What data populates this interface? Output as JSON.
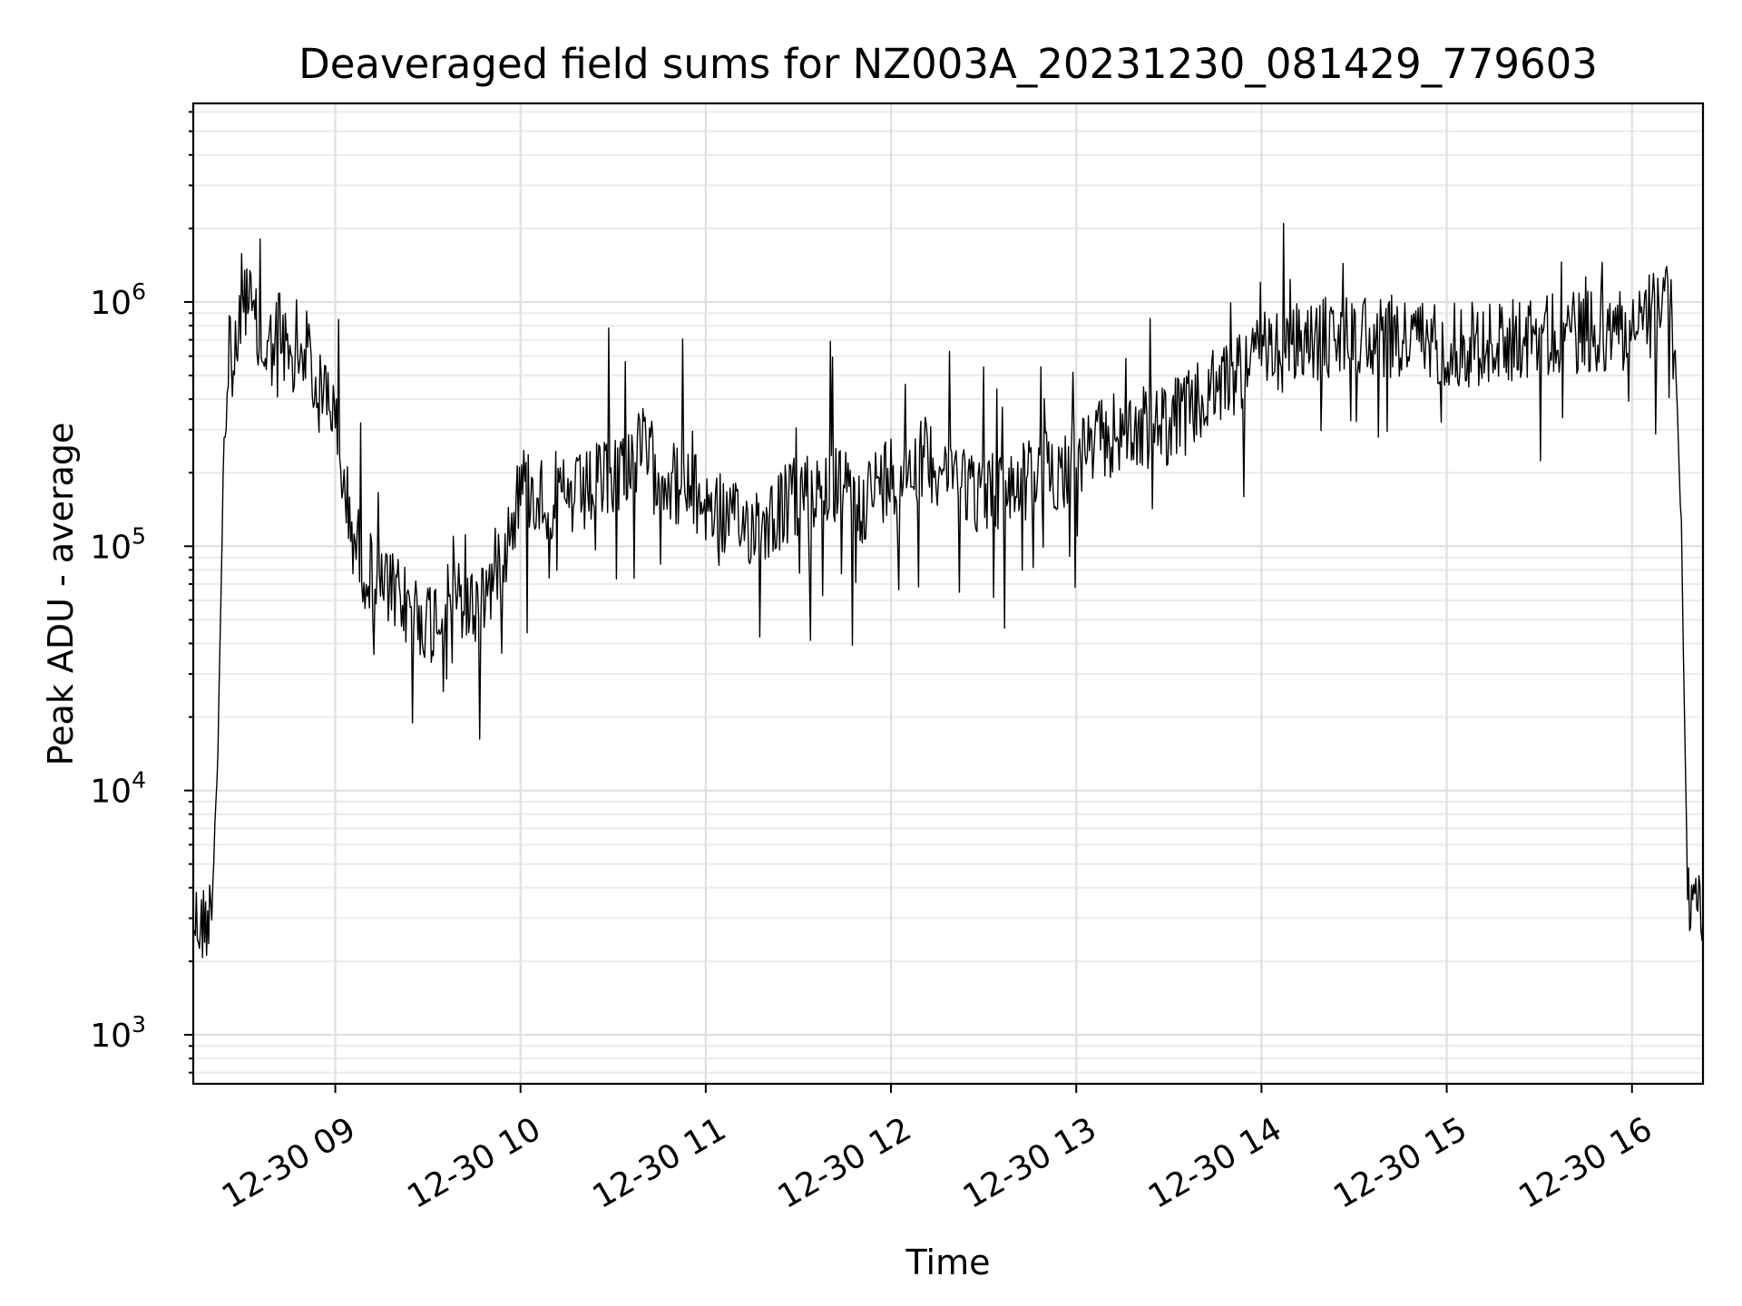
{
  "chart_data": {
    "type": "line",
    "title": "Deaveraged field sums for NZ003A_20231230_081429_779603",
    "xlabel": "Time",
    "ylabel": "Peak ADU - average",
    "yscale": "log",
    "xlim": [
      "2023-12-30 08:14",
      "2023-12-30 16:23"
    ],
    "ylim": [
      630,
      6500000
    ],
    "grid": true,
    "grid_minor": true,
    "xticks": [
      {
        "value": "2023-12-30 09:00",
        "label": "12-30 09"
      },
      {
        "value": "2023-12-30 10:00",
        "label": "12-30 10"
      },
      {
        "value": "2023-12-30 11:00",
        "label": "12-30 11"
      },
      {
        "value": "2023-12-30 12:00",
        "label": "12-30 12"
      },
      {
        "value": "2023-12-30 13:00",
        "label": "12-30 13"
      },
      {
        "value": "2023-12-30 14:00",
        "label": "12-30 14"
      },
      {
        "value": "2023-12-30 15:00",
        "label": "12-30 15"
      },
      {
        "value": "2023-12-30 16:00",
        "label": "12-30 16"
      }
    ],
    "yticks": [
      {
        "value": 1000,
        "base": "10",
        "exp": "3"
      },
      {
        "value": 10000,
        "base": "10",
        "exp": "4"
      },
      {
        "value": 100000,
        "base": "10",
        "exp": "5"
      },
      {
        "value": 1000000,
        "base": "10",
        "exp": "6"
      }
    ],
    "series": [
      {
        "color": "#000000",
        "x": [
          "2023-12-30 08:14",
          "2023-12-30 08:17",
          "2023-12-30 08:20",
          "2023-12-30 08:22",
          "2023-12-30 08:24",
          "2023-12-30 08:26",
          "2023-12-30 08:28",
          "2023-12-30 08:30",
          "2023-12-30 08:32",
          "2023-12-30 08:35",
          "2023-12-30 08:38",
          "2023-12-30 08:42",
          "2023-12-30 08:46",
          "2023-12-30 08:50",
          "2023-12-30 08:54",
          "2023-12-30 08:58",
          "2023-12-30 09:00",
          "2023-12-30 09:05",
          "2023-12-30 09:10",
          "2023-12-30 09:15",
          "2023-12-30 09:20",
          "2023-12-30 09:25",
          "2023-12-30 09:30",
          "2023-12-30 09:35",
          "2023-12-30 09:40",
          "2023-12-30 09:45",
          "2023-12-30 09:50",
          "2023-12-30 09:55",
          "2023-12-30 10:00",
          "2023-12-30 10:10",
          "2023-12-30 10:20",
          "2023-12-30 10:30",
          "2023-12-30 10:40",
          "2023-12-30 10:50",
          "2023-12-30 11:00",
          "2023-12-30 11:10",
          "2023-12-30 11:20",
          "2023-12-30 11:30",
          "2023-12-30 11:40",
          "2023-12-30 11:50",
          "2023-12-30 12:00",
          "2023-12-30 12:10",
          "2023-12-30 12:20",
          "2023-12-30 12:30",
          "2023-12-30 12:40",
          "2023-12-30 12:50",
          "2023-12-30 13:00",
          "2023-12-30 13:10",
          "2023-12-30 13:20",
          "2023-12-30 13:30",
          "2023-12-30 13:40",
          "2023-12-30 13:50",
          "2023-12-30 14:00",
          "2023-12-30 14:10",
          "2023-12-30 14:20",
          "2023-12-30 14:30",
          "2023-12-30 14:40",
          "2023-12-30 14:50",
          "2023-12-30 15:00",
          "2023-12-30 15:10",
          "2023-12-30 15:20",
          "2023-12-30 15:30",
          "2023-12-30 15:40",
          "2023-12-30 15:50",
          "2023-12-30 16:00",
          "2023-12-30 16:08",
          "2023-12-30 16:12",
          "2023-12-30 16:14",
          "2023-12-30 16:16",
          "2023-12-30 16:18",
          "2023-12-30 16:20",
          "2023-12-30 16:23"
        ],
        "y": [
          3000,
          2800,
          3200,
          15000,
          300000,
          500000,
          580000,
          1200000,
          1000000,
          700000,
          600000,
          800000,
          500000,
          700000,
          400000,
          450000,
          300000,
          120000,
          80000,
          70000,
          60000,
          55000,
          50000,
          55000,
          60000,
          55000,
          70000,
          100000,
          180000,
          150000,
          160000,
          200000,
          250000,
          180000,
          150000,
          120000,
          130000,
          160000,
          180000,
          150000,
          200000,
          230000,
          210000,
          160000,
          180000,
          200000,
          220000,
          280000,
          300000,
          320000,
          380000,
          500000,
          600000,
          650000,
          700000,
          750000,
          720000,
          700000,
          680000,
          650000,
          700000,
          720000,
          740000,
          760000,
          800000,
          900000,
          1000000,
          600000,
          120000,
          4000,
          3500,
          3000
        ]
      }
    ]
  }
}
